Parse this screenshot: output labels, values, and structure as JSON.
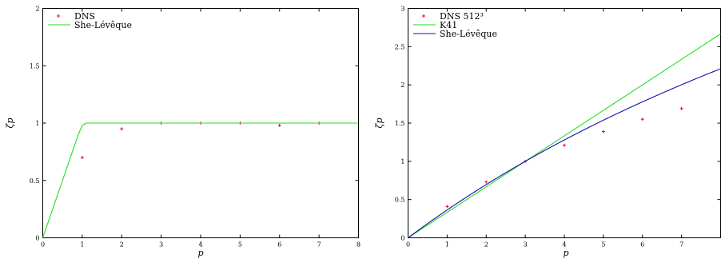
{
  "chart_data": [
    {
      "type": "line",
      "xlabel": "p",
      "ylabel": "ζp",
      "xlim": [
        0,
        8
      ],
      "ylim": [
        0,
        2
      ],
      "xticks": [
        "0",
        "1",
        "2",
        "3",
        "4",
        "5",
        "6",
        "7",
        "8"
      ],
      "yticks": [
        "0",
        "0.5",
        "1",
        "1.5",
        "2"
      ],
      "legend_position": "top-left",
      "series": [
        {
          "name": "DNS",
          "kind": "points",
          "color": "#e8003a",
          "x": [
            1,
            2,
            3,
            4,
            5,
            6,
            7
          ],
          "y": [
            0.7,
            0.95,
            1.0,
            1.0,
            1.0,
            0.98,
            1.0
          ]
        },
        {
          "name": "She-Lévêque",
          "kind": "line",
          "color": "#22dd22",
          "x": [
            0,
            0.5,
            0.9,
            1.0,
            1.1,
            2,
            3,
            4,
            5,
            6,
            7,
            8
          ],
          "y": [
            0,
            0.5,
            0.9,
            0.98,
            1.0,
            1.0,
            1.0,
            1.0,
            1.0,
            1.0,
            1.0,
            1.0
          ]
        }
      ]
    },
    {
      "type": "line",
      "xlabel": "p",
      "ylabel": "ζp",
      "xlim": [
        0,
        8
      ],
      "ylim": [
        0,
        3
      ],
      "xticks": [
        "0",
        "1",
        "2",
        "3",
        "4",
        "5",
        "6",
        "7"
      ],
      "yticks": [
        "0",
        "0.5",
        "1",
        "1.5",
        "2",
        "2.5",
        "3"
      ],
      "legend_position": "top-left",
      "series": [
        {
          "name": "DNS 512³",
          "kind": "points",
          "color": "#e8003a",
          "x": [
            1,
            2,
            3,
            4,
            5,
            6,
            7
          ],
          "y": [
            0.41,
            0.73,
            1.0,
            1.21,
            1.39,
            1.55,
            1.69
          ]
        },
        {
          "name": "K41",
          "kind": "line",
          "color": "#22dd22",
          "x": [
            0,
            8
          ],
          "y": [
            0,
            2.6667
          ]
        },
        {
          "name": "She-Lévêque",
          "kind": "line",
          "color": "#1010b0",
          "formula": "she-leveque"
        }
      ]
    }
  ]
}
